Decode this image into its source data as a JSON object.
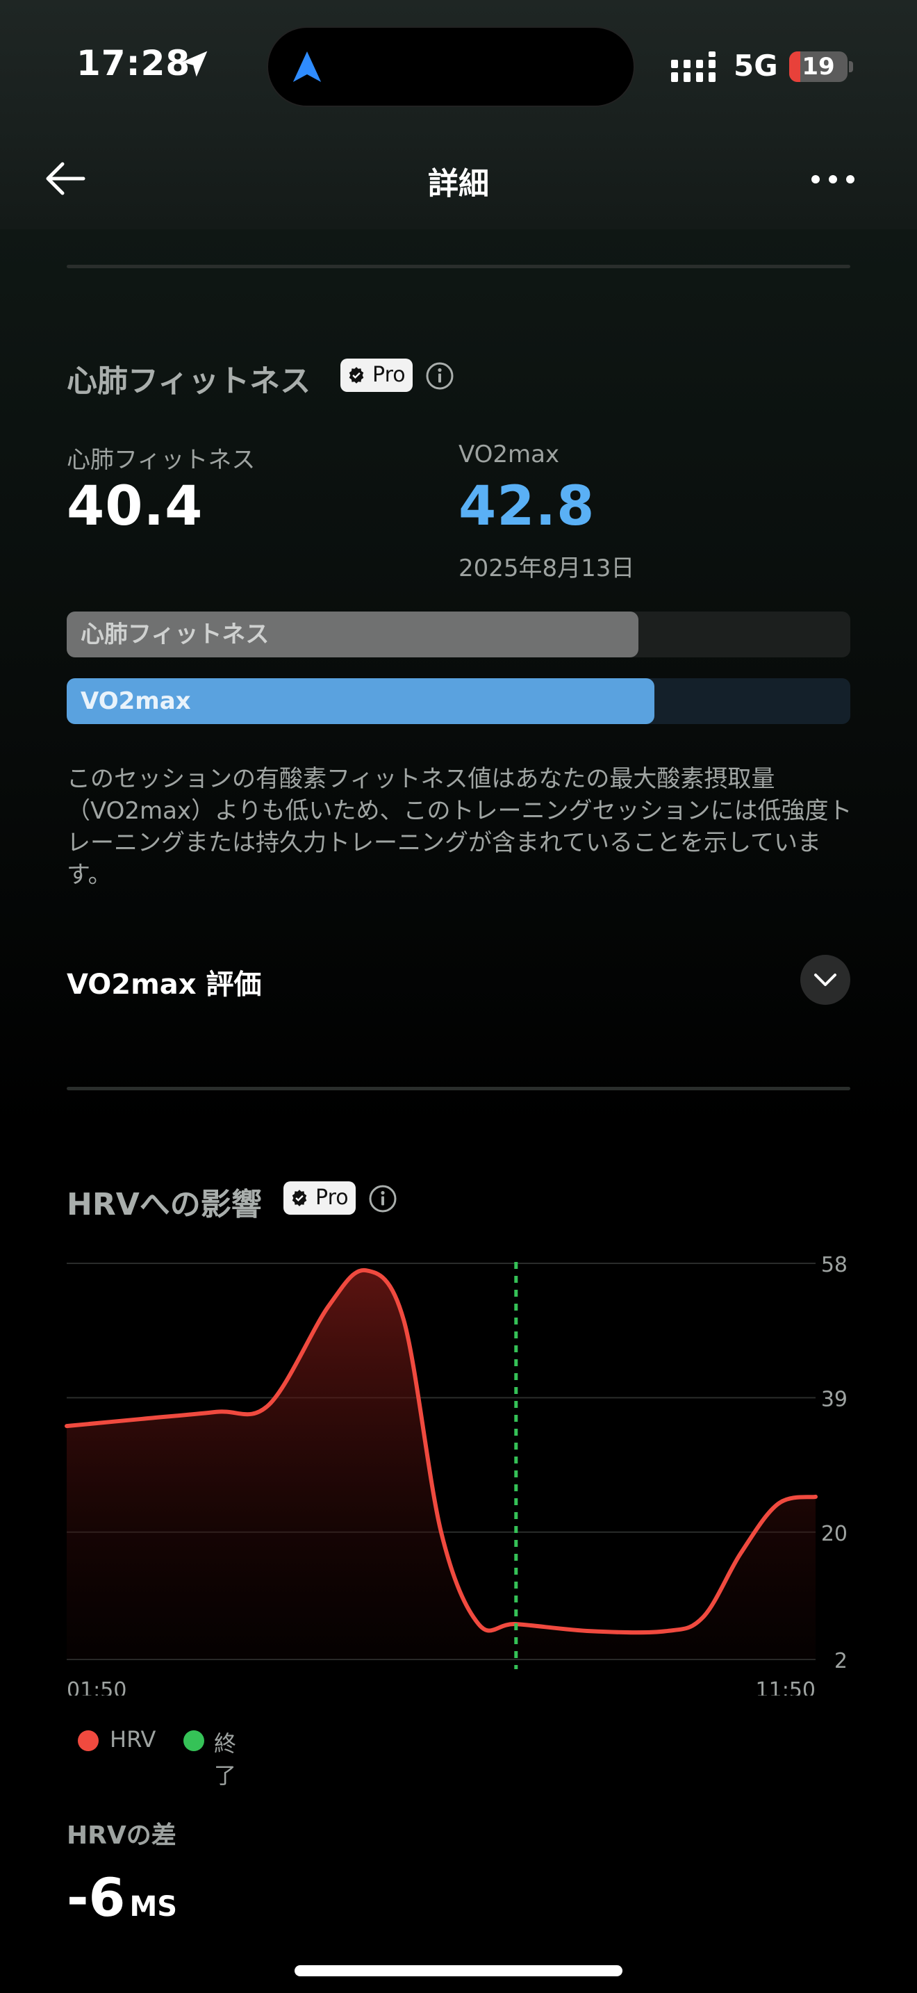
{
  "status_bar": {
    "time": "17:28",
    "network": "5G",
    "battery": "19",
    "battery_level": 0.19
  },
  "nav": {
    "title": "詳細"
  },
  "cardio": {
    "section_title": "心肺フィットネス",
    "pro_label": "Pro",
    "fitness_label": "心肺フィットネス",
    "fitness_value": "40.4",
    "vo2_label": "VO2max",
    "vo2_value": "42.8",
    "vo2_date": "2025年8月13日",
    "bar_fitness_label": "心肺フィットネス",
    "bar_fitness_fraction": 0.73,
    "bar_vo2_label": "VO2max",
    "bar_vo2_fraction": 0.75,
    "description": "このセッションの有酸素フィットネス値はあなたの最大酸素摂取量（VO2max）よりも低いため、このトレーニングセッションには低強度トレーニングまたは持久力トレーニングが含まれていることを示しています。",
    "evaluation_label": "VO2max 評価"
  },
  "hrv": {
    "section_title": "HRVへの影響",
    "pro_label": "Pro",
    "diff_label": "HRVの差",
    "diff_value": "-6",
    "diff_unit": "MS"
  },
  "chart_data": {
    "type": "area",
    "x_labels": [
      "01:50",
      "11:50"
    ],
    "y_ticks": [
      58,
      39,
      20,
      2
    ],
    "ylim": [
      2,
      58
    ],
    "series": [
      {
        "name": "HRV",
        "color": "#f04a3f",
        "x": [
          0,
          0.1,
          0.2,
          0.27,
          0.35,
          0.4,
          0.45,
          0.5,
          0.55,
          0.6,
          0.7,
          0.8,
          0.85,
          0.9,
          0.95,
          1.0
        ],
        "values": [
          35,
          36,
          37,
          38,
          52,
          57,
          50,
          20,
          7,
          7,
          6,
          6,
          8,
          17,
          24,
          25
        ]
      }
    ],
    "end_marker": {
      "label": "終了",
      "color": "#35c257",
      "x": 0.6
    },
    "legend": [
      {
        "label": "HRV",
        "color": "#f04a3f"
      },
      {
        "label": "終了",
        "color": "#35c257"
      }
    ],
    "grid": true
  }
}
